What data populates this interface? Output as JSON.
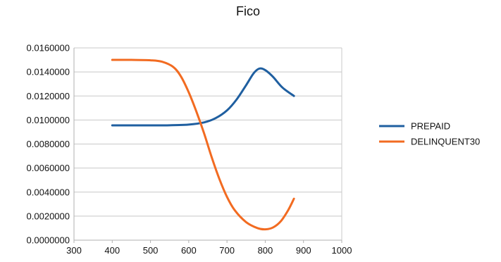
{
  "chart_data": {
    "type": "line",
    "title": "Fico",
    "xlabel": "",
    "ylabel": "",
    "xlim": [
      300,
      1000
    ],
    "ylim": [
      0.0,
      0.016
    ],
    "x_ticks": [
      "300",
      "400",
      "500",
      "600",
      "700",
      "800",
      "900",
      "1000"
    ],
    "y_ticks": [
      "0.0000000",
      "0.0020000",
      "0.0040000",
      "0.0060000",
      "0.0080000",
      "0.0100000",
      "0.0120000",
      "0.0140000",
      "0.0160000"
    ],
    "grid": "horizontal",
    "legend": "right",
    "series": [
      {
        "name": "PREPAID",
        "color": "#1f5fa0",
        "points": [
          [
            400,
            0.00955
          ],
          [
            450,
            0.00955
          ],
          [
            500,
            0.00955
          ],
          [
            550,
            0.00956
          ],
          [
            600,
            0.00962
          ],
          [
            640,
            0.0098
          ],
          [
            670,
            0.01015
          ],
          [
            700,
            0.0108
          ],
          [
            725,
            0.0117
          ],
          [
            750,
            0.0129
          ],
          [
            770,
            0.0139
          ],
          [
            785,
            0.01428
          ],
          [
            800,
            0.01415
          ],
          [
            820,
            0.0136
          ],
          [
            845,
            0.0127
          ],
          [
            875,
            0.012
          ]
        ]
      },
      {
        "name": "DELINQUENT30",
        "color": "#f26b21",
        "points": [
          [
            400,
            0.015
          ],
          [
            450,
            0.015
          ],
          [
            500,
            0.01497
          ],
          [
            530,
            0.01485
          ],
          [
            560,
            0.0144
          ],
          [
            580,
            0.0136
          ],
          [
            600,
            0.0123
          ],
          [
            620,
            0.0107
          ],
          [
            640,
            0.0089
          ],
          [
            660,
            0.0069
          ],
          [
            680,
            0.0051
          ],
          [
            700,
            0.0036
          ],
          [
            720,
            0.0025
          ],
          [
            750,
            0.0015
          ],
          [
            780,
            0.001
          ],
          [
            800,
            0.0009
          ],
          [
            820,
            0.00105
          ],
          [
            840,
            0.00155
          ],
          [
            860,
            0.0025
          ],
          [
            875,
            0.00345
          ]
        ]
      }
    ]
  }
}
